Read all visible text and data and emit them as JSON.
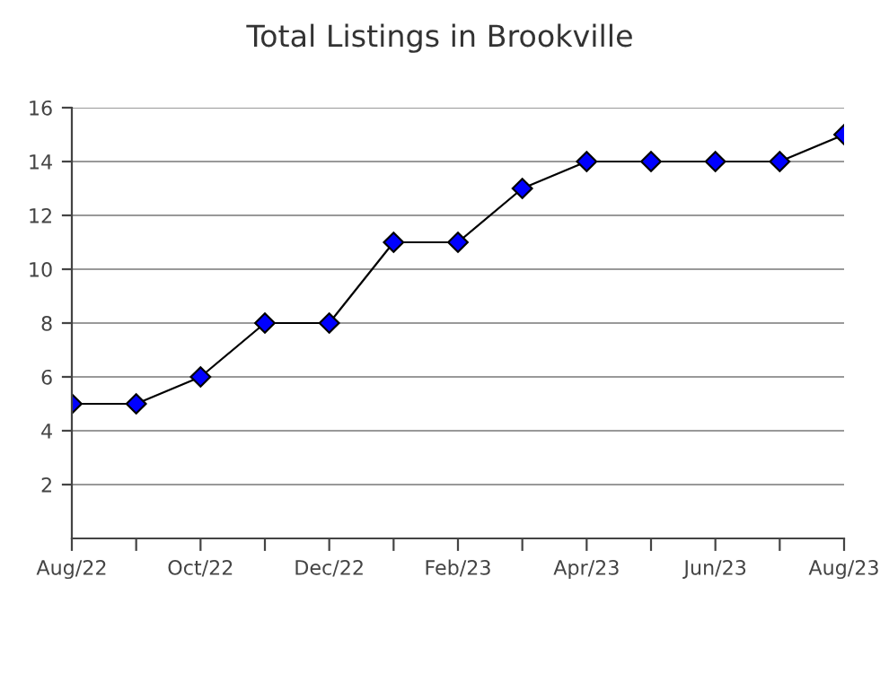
{
  "chart_data": {
    "type": "line",
    "title": "Total Listings in Brookville",
    "categories": [
      "Aug/22",
      null,
      "Oct/22",
      null,
      "Dec/22",
      null,
      "Feb/23",
      null,
      "Apr/23",
      null,
      "Jun/23",
      null,
      "Aug/23"
    ],
    "series": [
      {
        "color": "#0000ff",
        "values": [
          5,
          5,
          6,
          8,
          8,
          11,
          11,
          13,
          14,
          14,
          14,
          14,
          15
        ]
      }
    ],
    "ylim": [
      0,
      16
    ],
    "yticks": [
      2,
      4,
      6,
      8,
      10,
      12,
      14,
      16
    ],
    "grid": "y",
    "marker": "diamond",
    "line_style": "solid"
  }
}
